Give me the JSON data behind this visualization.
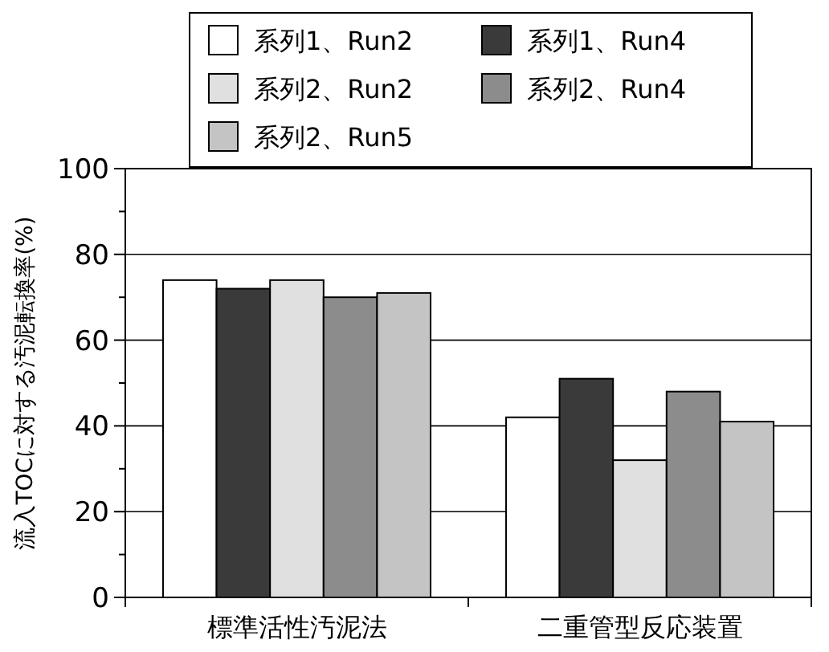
{
  "chart_data": {
    "type": "bar",
    "ylabel": "流入TOCに対する汚泥転換率(%)",
    "categories": [
      "標準活性汚泥法",
      "二重管型反応装置"
    ],
    "series": [
      {
        "name": "系列1、Run2",
        "color": "#ffffff",
        "values": [
          74,
          42
        ]
      },
      {
        "name": "系列1、Run4",
        "color": "#3a3a3a",
        "values": [
          72,
          51
        ]
      },
      {
        "name": "系列2、Run2",
        "color": "#e0e0e0",
        "values": [
          74,
          32
        ]
      },
      {
        "name": "系列2、Run4",
        "color": "#8c8c8c",
        "values": [
          70,
          48
        ]
      },
      {
        "name": "系列2、Run5",
        "color": "#c4c4c4",
        "values": [
          71,
          41
        ]
      }
    ],
    "ylim": [
      0,
      100
    ],
    "yticks": [
      0,
      {
        "value": 10,
        "label": null
      },
      20,
      {
        "value": 30,
        "label": null
      },
      40,
      {
        "value": 50,
        "label": null
      },
      60,
      {
        "value": 70,
        "label": null
      },
      80,
      {
        "value": 90,
        "label": null
      },
      100
    ],
    "grid": "y",
    "legend": "top"
  }
}
